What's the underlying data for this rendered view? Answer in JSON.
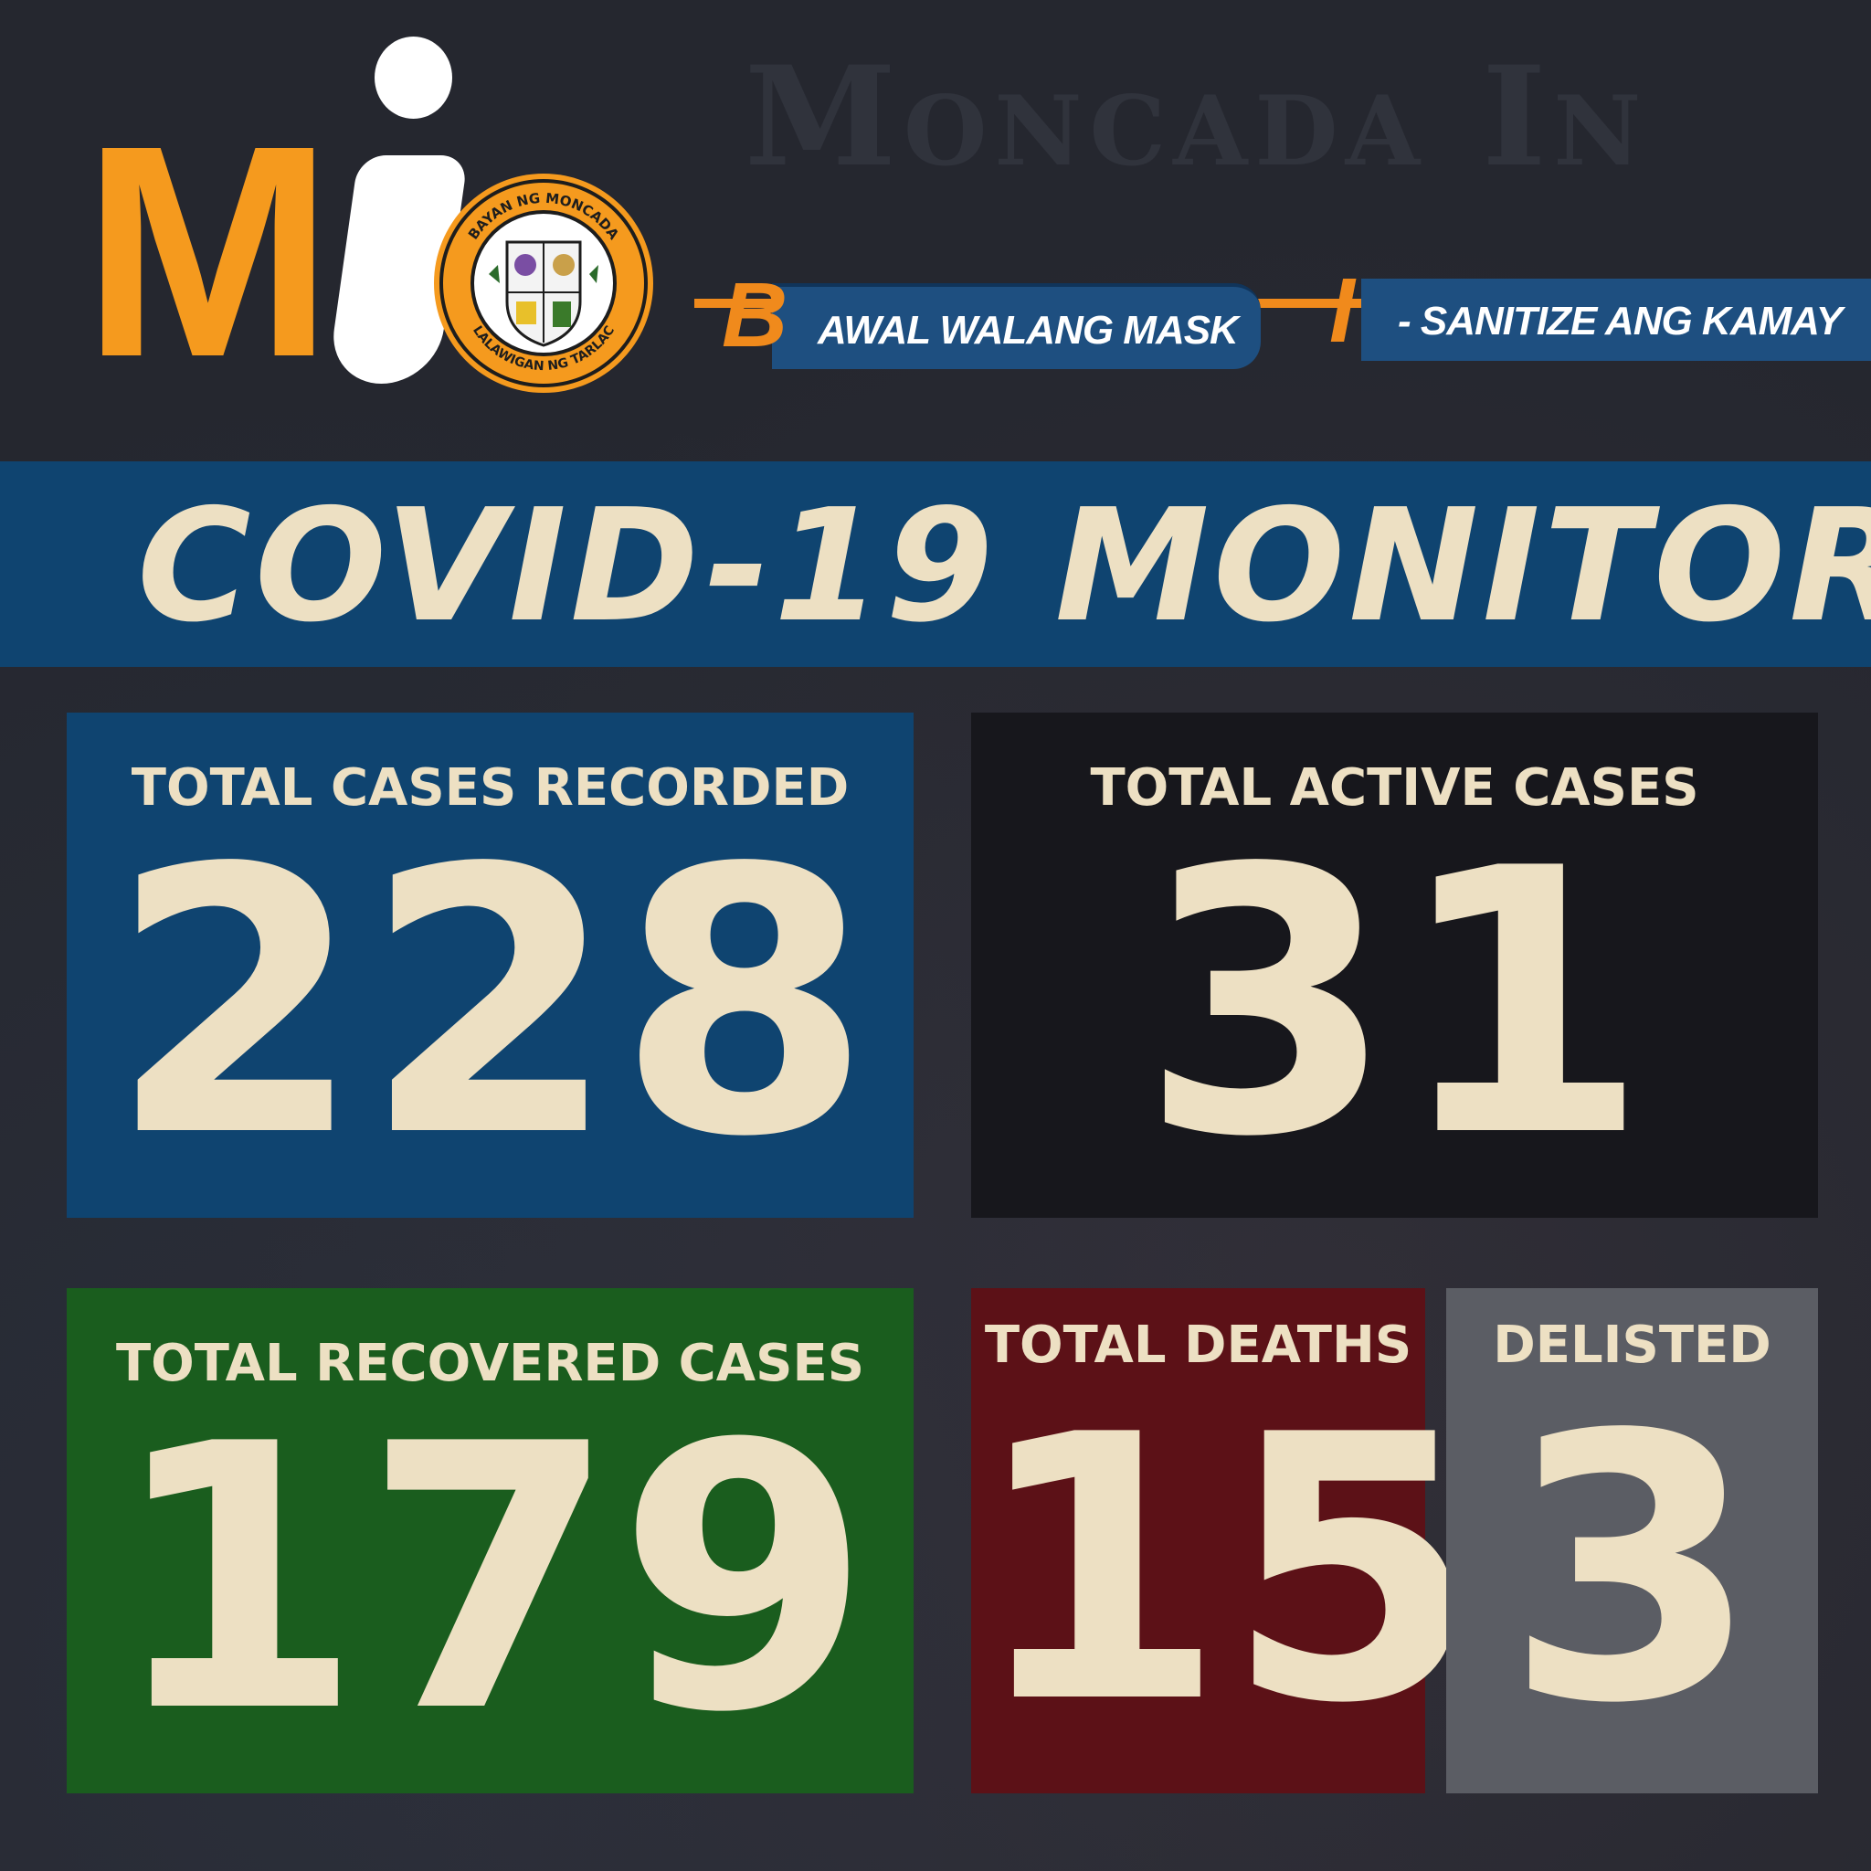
{
  "header": {
    "watermark_title": "Moncada In"
  },
  "logo": {
    "letter_m": "M",
    "seal_top_text": "BAYAN NG MONCADA",
    "seal_bottom_text": "LALAWIGAN NG TARLAC"
  },
  "slogan": {
    "letter_1": "B",
    "text_1": "AWAL WALANG MASK",
    "letter_2": "I",
    "text_2": "- SANITIZE ANG KAMAY"
  },
  "title": "COVID-19 MONITOR",
  "cards": {
    "total_cases": {
      "label": "TOTAL CASES RECORDED",
      "value": "228",
      "color": "#0f4470"
    },
    "active_cases": {
      "label": "TOTAL ACTIVE CASES",
      "value": "31",
      "color": "#17171c"
    },
    "recovered_cases": {
      "label": "TOTAL RECOVERED CASES",
      "value": "179",
      "color": "#1a5d1e"
    },
    "deaths": {
      "label": "TOTAL DEATHS",
      "value": "15",
      "color": "#5c1117"
    },
    "delisted": {
      "label": "DELISTED",
      "value": "3",
      "color": "#5b5d64"
    }
  },
  "colors": {
    "accent_orange": "#f59a1e",
    "text_cream": "#ede0c3",
    "background": "#25272f"
  }
}
